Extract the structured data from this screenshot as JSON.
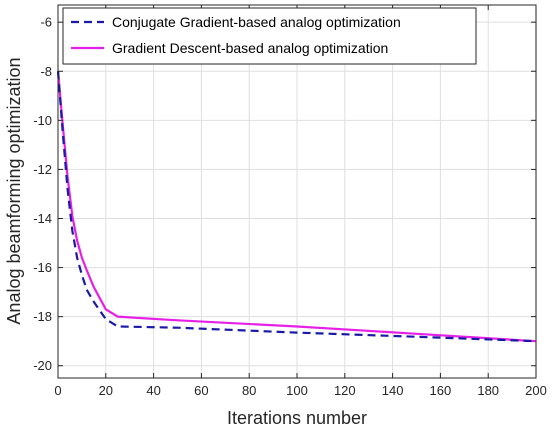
{
  "chart_data": {
    "type": "line",
    "title": "",
    "xlabel": "Iterations number",
    "ylabel": "Analog beamforming optimization",
    "xlim": [
      0,
      200
    ],
    "ylim": [
      -20.5,
      -5.3
    ],
    "xticks": [
      0,
      20,
      40,
      60,
      80,
      100,
      120,
      140,
      160,
      180,
      200
    ],
    "yticks": [
      -20,
      -18,
      -16,
      -14,
      -12,
      -10,
      -8,
      -6
    ],
    "xtick_labels": [
      "0",
      "20",
      "40",
      "60",
      "80",
      "100",
      "120",
      "140",
      "160",
      "180",
      "200"
    ],
    "ytick_labels": [
      "-20",
      "-18",
      "-16",
      "-14",
      "-12",
      "-10",
      "-8",
      "-6"
    ],
    "grid": true,
    "legend_position": "top-right",
    "series": [
      {
        "name": "Conjugate Gradient-based analog optimization",
        "style": "dashed",
        "color": "#1a1aa8",
        "x": [
          0,
          2,
          4,
          6,
          8,
          10,
          12,
          15,
          20,
          25,
          50,
          100,
          150,
          200
        ],
        "y": [
          -8.0,
          -10.5,
          -12.8,
          -14.5,
          -15.6,
          -16.3,
          -16.9,
          -17.4,
          -18.1,
          -18.4,
          -18.45,
          -18.65,
          -18.82,
          -19.0
        ]
      },
      {
        "name": "Gradient Descent-based analog optimization",
        "style": "solid",
        "color": "#e620e6",
        "x": [
          0,
          2,
          4,
          6,
          8,
          10,
          12,
          15,
          20,
          25,
          50,
          100,
          150,
          200
        ],
        "y": [
          -8.0,
          -10.2,
          -12.3,
          -13.9,
          -14.9,
          -15.6,
          -16.1,
          -16.8,
          -17.7,
          -18.0,
          -18.15,
          -18.4,
          -18.7,
          -19.0
        ]
      }
    ]
  }
}
